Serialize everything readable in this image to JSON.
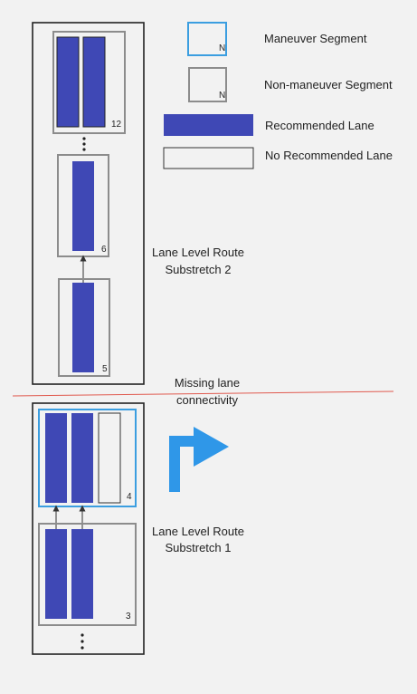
{
  "legend": {
    "maneuver_segment": "Maneuver Segment",
    "non_maneuver_segment": "Non-maneuver Segment",
    "recommended_lane": "Recommended Lane",
    "no_recommended_lane": "No Recommended Lane",
    "segment_marker": "N"
  },
  "substretch_2": {
    "label_line1": "Lane Level Route",
    "label_line2": "Substretch 2",
    "segments": {
      "top": "12",
      "middle": "6",
      "bottom": "5"
    }
  },
  "substretch_1": {
    "label_line1": "Lane Level Route",
    "label_line2": "Substretch 1",
    "segments": {
      "maneuver": "4",
      "bottom": "3"
    }
  },
  "divider": {
    "line1": "Missing lane",
    "line2": "connectivity"
  },
  "colors": {
    "recommended_lane": "#3f48b5",
    "maneuver_border": "#3b9ee0",
    "non_maneuver_border": "#8c8c8c",
    "divider": "#e05a4f",
    "turn_arrow": "#2f97e8",
    "background": "#f2f2f2"
  },
  "icons": {
    "turn": "turn-right-arrow-icon",
    "ellipsis": "vertical-ellipsis-icon"
  }
}
